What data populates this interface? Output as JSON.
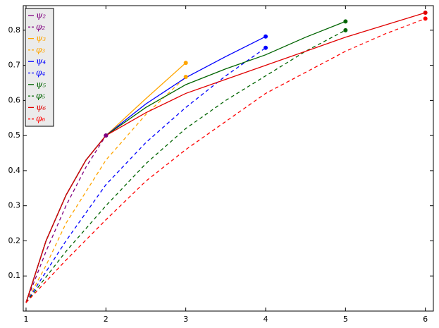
{
  "chart_data": {
    "type": "line",
    "end_markers": true,
    "legend": "upper left",
    "xlim": [
      0.965,
      6.1
    ],
    "ylim": [
      0.0,
      0.87
    ],
    "xticks": [
      1,
      2,
      3,
      4,
      5,
      6
    ],
    "yticks": [
      0.1,
      0.2,
      0.3,
      0.4,
      0.5,
      0.6,
      0.7,
      0.8
    ],
    "series": [
      {
        "name": "ψ₂",
        "color": "#800080",
        "dashed": false,
        "x": [
          1,
          1.25,
          1.5,
          1.75,
          2
        ],
        "values": [
          0.024,
          0.2,
          0.33,
          0.43,
          0.5
        ]
      },
      {
        "name": "φ₂",
        "color": "#800080",
        "dashed": true,
        "x": [
          1,
          1.25,
          1.5,
          1.75,
          2
        ],
        "values": [
          0.024,
          0.17,
          0.3,
          0.41,
          0.5
        ]
      },
      {
        "name": "ψ₃",
        "color": "#ffa500",
        "dashed": false,
        "x": [
          1,
          1.25,
          1.5,
          1.75,
          2,
          2.5,
          3
        ],
        "values": [
          0.024,
          0.2,
          0.33,
          0.43,
          0.5,
          0.605,
          0.707
        ]
      },
      {
        "name": "φ₃",
        "color": "#ffa500",
        "dashed": true,
        "x": [
          1,
          1.25,
          1.5,
          2,
          2.5,
          3
        ],
        "values": [
          0.024,
          0.13,
          0.25,
          0.43,
          0.56,
          0.667
        ]
      },
      {
        "name": "ψ₄",
        "color": "#0000ff",
        "dashed": false,
        "x": [
          1,
          1.25,
          1.5,
          1.75,
          2,
          2.5,
          3,
          3.5,
          4
        ],
        "values": [
          0.024,
          0.2,
          0.33,
          0.43,
          0.5,
          0.59,
          0.665,
          0.725,
          0.782
        ]
      },
      {
        "name": "φ₄",
        "color": "#0000ff",
        "dashed": true,
        "x": [
          1,
          1.5,
          2,
          2.5,
          3,
          3.5,
          4
        ],
        "values": [
          0.024,
          0.2,
          0.36,
          0.48,
          0.58,
          0.67,
          0.75
        ]
      },
      {
        "name": "ψ₅",
        "color": "#006400",
        "dashed": false,
        "x": [
          1,
          1.25,
          1.5,
          1.75,
          2,
          2.5,
          3,
          3.5,
          4,
          4.5,
          5
        ],
        "values": [
          0.024,
          0.2,
          0.33,
          0.43,
          0.5,
          0.58,
          0.645,
          0.69,
          0.73,
          0.78,
          0.825
        ]
      },
      {
        "name": "φ₅",
        "color": "#006400",
        "dashed": true,
        "x": [
          1,
          1.5,
          2,
          2.5,
          3,
          3.5,
          4,
          4.5,
          5
        ],
        "values": [
          0.024,
          0.17,
          0.3,
          0.42,
          0.52,
          0.6,
          0.67,
          0.74,
          0.8
        ]
      },
      {
        "name": "ψ₆",
        "color": "#e00000",
        "dashed": false,
        "x": [
          1,
          1.25,
          1.5,
          1.75,
          2,
          2.5,
          3,
          3.5,
          4,
          4.5,
          5,
          5.5,
          6
        ],
        "values": [
          0.024,
          0.2,
          0.33,
          0.43,
          0.5,
          0.565,
          0.62,
          0.66,
          0.7,
          0.74,
          0.78,
          0.815,
          0.85
        ]
      },
      {
        "name": "φ₆",
        "color": "#ff0000",
        "dashed": true,
        "x": [
          1,
          1.5,
          2,
          2.5,
          3,
          3.5,
          4,
          4.5,
          5,
          5.5,
          6
        ],
        "values": [
          0.024,
          0.145,
          0.26,
          0.37,
          0.46,
          0.54,
          0.62,
          0.68,
          0.74,
          0.79,
          0.833
        ]
      }
    ]
  }
}
